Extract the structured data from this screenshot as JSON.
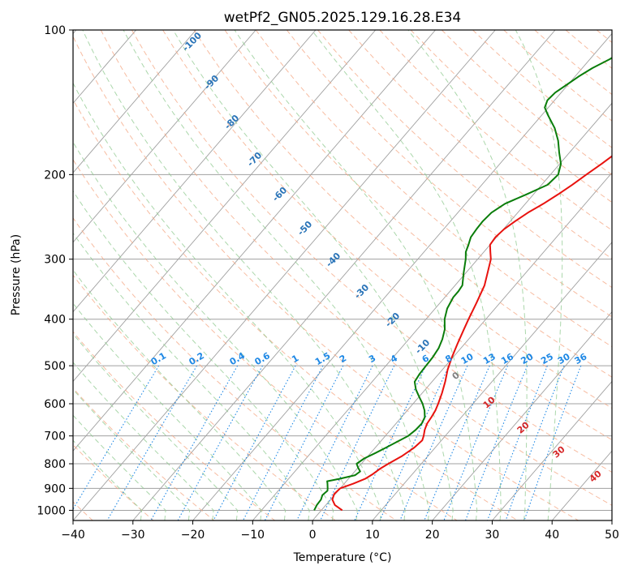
{
  "chart_data": {
    "type": "line",
    "title": "wetPf2_GN05.2025.129.16.28.E34",
    "xlabel": "Temperature (°C)",
    "ylabel": "Pressure (hPa)",
    "xlim": [
      -40,
      50
    ],
    "ylim": [
      1050,
      100
    ],
    "yscale": "log",
    "xticks": [
      "−40",
      "−30",
      "−20",
      "−10",
      "0",
      "10",
      "20",
      "30",
      "40",
      "50"
    ],
    "yticks": [
      "100",
      "200",
      "300",
      "400",
      "500",
      "600",
      "700",
      "800",
      "900",
      "1000"
    ],
    "grid": true,
    "series": [
      {
        "color": "#e8120e",
        "points": [
          [
            1000,
            3.5
          ],
          [
            975,
            1.5
          ],
          [
            950,
            0.3
          ],
          [
            925,
            -0.2
          ],
          [
            900,
            0.0
          ],
          [
            880,
            1.5
          ],
          [
            860,
            2.8
          ],
          [
            840,
            3.4
          ],
          [
            820,
            3.8
          ],
          [
            800,
            4.5
          ],
          [
            770,
            5.7
          ],
          [
            740,
            6.5
          ],
          [
            715,
            6.8
          ],
          [
            700,
            6.4
          ],
          [
            680,
            5.7
          ],
          [
            660,
            5.2
          ],
          [
            640,
            5.0
          ],
          [
            620,
            4.7
          ],
          [
            600,
            4.2
          ],
          [
            570,
            3.3
          ],
          [
            540,
            2.2
          ],
          [
            510,
            0.9
          ],
          [
            480,
            -0.2
          ],
          [
            450,
            -1.2
          ],
          [
            420,
            -2.2
          ],
          [
            400,
            -2.9
          ],
          [
            370,
            -3.9
          ],
          [
            340,
            -5.1
          ],
          [
            320,
            -6.4
          ],
          [
            300,
            -7.8
          ],
          [
            290,
            -8.9
          ],
          [
            280,
            -10.0
          ],
          [
            270,
            -10.2
          ],
          [
            260,
            -9.9
          ],
          [
            250,
            -9.2
          ],
          [
            240,
            -8.3
          ],
          [
            230,
            -7.0
          ],
          [
            220,
            -5.9
          ],
          [
            210,
            -4.9
          ],
          [
            200,
            -4.0
          ],
          [
            190,
            -3.0
          ],
          [
            180,
            -2.1
          ],
          [
            170,
            -1.7
          ],
          [
            160,
            -1.6
          ],
          [
            150,
            -1.5
          ],
          [
            140,
            -1.6
          ],
          [
            130,
            -1.8
          ],
          [
            120,
            -1.9
          ],
          [
            115,
            -1.5
          ],
          [
            110,
            -0.6
          ],
          [
            105,
            0.2
          ],
          [
            100,
            0.8
          ]
        ]
      },
      {
        "color": "#0a7d0a",
        "points": [
          [
            1000,
            -1.2
          ],
          [
            975,
            -1.5
          ],
          [
            950,
            -1.6
          ],
          [
            930,
            -2.0
          ],
          [
            910,
            -1.8
          ],
          [
            900,
            -2.1
          ],
          [
            880,
            -2.8
          ],
          [
            870,
            -3.2
          ],
          [
            860,
            -1.5
          ],
          [
            845,
            0.6
          ],
          [
            830,
            0.9
          ],
          [
            815,
            0.0
          ],
          [
            800,
            -0.8
          ],
          [
            780,
            -0.3
          ],
          [
            760,
            0.8
          ],
          [
            740,
            1.8
          ],
          [
            720,
            2.8
          ],
          [
            700,
            3.8
          ],
          [
            680,
            4.2
          ],
          [
            660,
            4.3
          ],
          [
            640,
            3.9
          ],
          [
            620,
            2.9
          ],
          [
            600,
            1.6
          ],
          [
            580,
            0.0
          ],
          [
            560,
            -1.6
          ],
          [
            540,
            -2.9
          ],
          [
            520,
            -3.2
          ],
          [
            500,
            -3.3
          ],
          [
            480,
            -3.4
          ],
          [
            460,
            -3.7
          ],
          [
            440,
            -4.4
          ],
          [
            420,
            -5.4
          ],
          [
            400,
            -6.9
          ],
          [
            380,
            -8.0
          ],
          [
            360,
            -8.6
          ],
          [
            350,
            -8.6
          ],
          [
            340,
            -8.8
          ],
          [
            320,
            -10.4
          ],
          [
            300,
            -12.0
          ],
          [
            290,
            -13.0
          ],
          [
            280,
            -13.6
          ],
          [
            270,
            -14.3
          ],
          [
            260,
            -14.5
          ],
          [
            250,
            -14.6
          ],
          [
            240,
            -14.4
          ],
          [
            230,
            -13.4
          ],
          [
            220,
            -11.2
          ],
          [
            210,
            -9.0
          ],
          [
            200,
            -8.7
          ],
          [
            190,
            -9.8
          ],
          [
            180,
            -11.7
          ],
          [
            170,
            -13.6
          ],
          [
            160,
            -16.0
          ],
          [
            150,
            -19.1
          ],
          [
            145,
            -20.6
          ],
          [
            140,
            -21.2
          ],
          [
            135,
            -21.0
          ],
          [
            130,
            -20.2
          ],
          [
            125,
            -19.4
          ],
          [
            120,
            -18.3
          ],
          [
            115,
            -16.7
          ],
          [
            110,
            -15.5
          ],
          [
            105,
            -15.0
          ],
          [
            100,
            -15.0
          ]
        ]
      }
    ],
    "dry_adiabat_labels": [
      "-100",
      "-90",
      "-80",
      "-70",
      "-60",
      "-50",
      "-40",
      "-30",
      "-20",
      "-10"
    ],
    "mixing_ratio_labels": [
      "0.1",
      "0.2",
      "0.4",
      "0.6",
      "1",
      "1.5",
      "2",
      "3",
      "4",
      "6",
      "8",
      "10",
      "13",
      "16",
      "20",
      "25",
      "30",
      "36"
    ],
    "moist_adiabat_labels": [
      "0",
      "10",
      "20",
      "30",
      "40"
    ],
    "colors": {
      "temperature": "#e8120e",
      "dewpoint": "#0a7d0a",
      "isotherm": "#a0a0a0",
      "isobar": "#a0a0a0",
      "dry_adiabat": "#f4a582",
      "moist_adiabat": "#8fc98f",
      "mixing_ratio": "#1e88e5",
      "dry_label": "#2a74b8",
      "moist_label": "#d62728",
      "zero_label": "#808080"
    }
  }
}
